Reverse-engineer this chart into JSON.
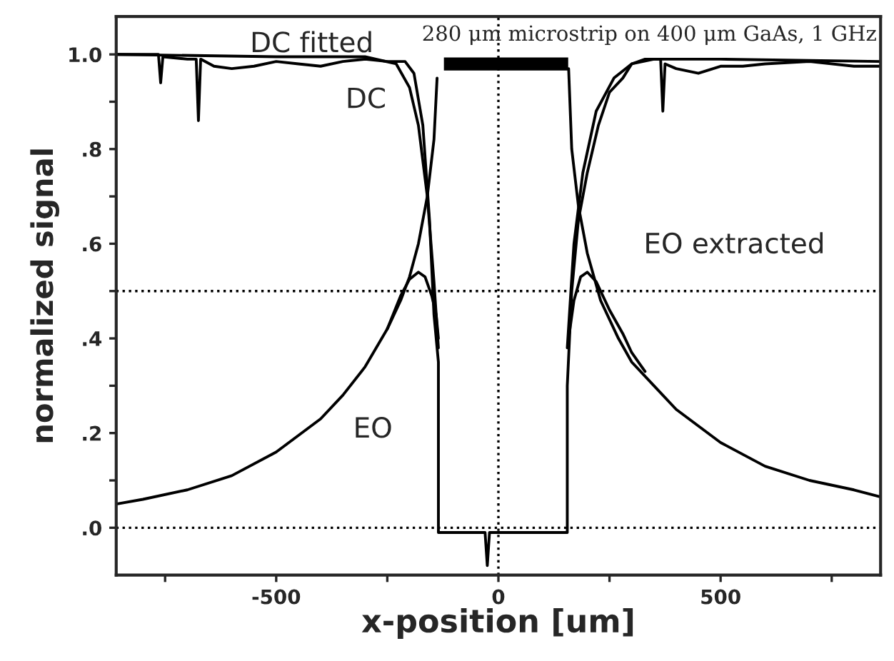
{
  "chart_data": {
    "type": "line",
    "title": "280 μm microstrip on 400 μm GaAs, 1 GHz",
    "xlabel": "x-position [um]",
    "ylabel": "normalized signal",
    "xlim": [
      -860,
      860
    ],
    "ylim": [
      -0.1,
      1.08
    ],
    "xticks": [
      {
        "value": -750,
        "label": null
      },
      -500,
      {
        "value": -250,
        "label": null
      },
      0,
      {
        "value": 250,
        "label": null
      },
      500,
      {
        "value": 750,
        "label": null
      }
    ],
    "yticks": [
      {
        "value": 0,
        "label": ".0"
      },
      {
        "value": 0.1,
        "label": null
      },
      {
        "value": 0.2,
        "label": ".2"
      },
      {
        "value": 0.3,
        "label": null
      },
      {
        "value": 0.4,
        "label": ".4"
      },
      {
        "value": 0.5,
        "label": null
      },
      {
        "value": 0.6,
        "label": ".6"
      },
      {
        "value": 0.7,
        "label": null
      },
      {
        "value": 0.8,
        "label": ".8"
      },
      {
        "value": 0.9,
        "label": null
      },
      {
        "value": 1.0,
        "label": "1.0"
      }
    ],
    "grid": false,
    "legend": false,
    "marker": "none",
    "line_style": "solid",
    "series": [
      {
        "color": "#000000",
        "x": [
          -860,
          -800,
          -765,
          -760,
          -755,
          -700,
          -680,
          -675,
          -670,
          -640,
          -600,
          -550,
          -500,
          -450,
          -400,
          -350,
          -300,
          -250,
          -210,
          -190,
          -170,
          -155,
          -145,
          -135,
          -135,
          -30,
          -25,
          -20,
          155,
          155,
          165,
          180,
          200,
          225,
          250,
          280,
          300,
          330,
          365,
          370,
          375,
          400,
          450,
          500,
          550,
          600,
          700,
          800,
          860
        ],
        "values": [
          1.0,
          1.0,
          1.0,
          0.94,
          0.995,
          0.99,
          0.99,
          0.86,
          0.99,
          0.975,
          0.97,
          0.975,
          0.985,
          0.98,
          0.975,
          0.985,
          0.99,
          0.985,
          0.985,
          0.96,
          0.85,
          0.65,
          0.45,
          0.35,
          -0.01,
          -0.01,
          -0.08,
          -0.01,
          -0.01,
          0.3,
          0.5,
          0.65,
          0.75,
          0.85,
          0.92,
          0.95,
          0.98,
          0.99,
          0.99,
          0.88,
          0.98,
          0.97,
          0.96,
          0.975,
          0.975,
          0.98,
          0.985,
          0.975,
          0.975
        ]
      },
      {
        "color": "#000000",
        "x": [
          -860,
          -500,
          -300,
          -230,
          -200,
          -180,
          -160,
          -145,
          -135,
          0,
          155,
          170,
          190,
          220,
          260,
          300,
          350,
          500,
          860
        ],
        "values": [
          1.0,
          0.995,
          0.995,
          0.98,
          0.93,
          0.85,
          0.7,
          0.52,
          0.38,
          null,
          0.38,
          0.6,
          0.75,
          0.88,
          0.95,
          0.98,
          0.99,
          0.99,
          0.985
        ]
      },
      {
        "color": "#000000",
        "x": [
          -860,
          -800,
          -700,
          -600,
          -500,
          -400,
          -350,
          -300,
          -250,
          -220,
          -200,
          -180,
          -160,
          -145,
          -138,
          0,
          158,
          165,
          180,
          200,
          230,
          270,
          300,
          350,
          400,
          500,
          600,
          700,
          800,
          860
        ],
        "values": [
          0.05,
          0.06,
          0.08,
          0.11,
          0.16,
          0.23,
          0.28,
          0.34,
          0.42,
          0.48,
          0.53,
          0.6,
          0.7,
          0.82,
          0.95,
          null,
          0.97,
          0.8,
          0.68,
          0.58,
          0.48,
          0.4,
          0.35,
          0.3,
          0.25,
          0.18,
          0.13,
          0.1,
          0.08,
          0.065
        ]
      },
      {
        "color": "#000000",
        "x": [
          -250,
          -220,
          -200,
          -180,
          -165,
          -150,
          -140,
          -135,
          0,
          158,
          170,
          185,
          200,
          220,
          250,
          280,
          300,
          330
        ],
        "values": [
          0.42,
          0.49,
          0.525,
          0.54,
          0.53,
          0.49,
          0.45,
          0.4,
          null,
          0.4,
          0.48,
          0.53,
          0.54,
          0.52,
          0.46,
          0.41,
          0.37,
          0.33
        ]
      }
    ],
    "ref_lines": [
      {
        "axis": "y",
        "value": 0.5,
        "color": "#000000",
        "line_style": "dotted"
      },
      {
        "axis": "y",
        "value": 0,
        "color": "#000000",
        "line_style": "dotted"
      },
      {
        "axis": "x",
        "value": 0,
        "color": "#000000",
        "line_style": "dotted"
      }
    ],
    "annotations": [
      "DC fitted",
      "DC",
      "EO",
      "EO extracted"
    ]
  }
}
